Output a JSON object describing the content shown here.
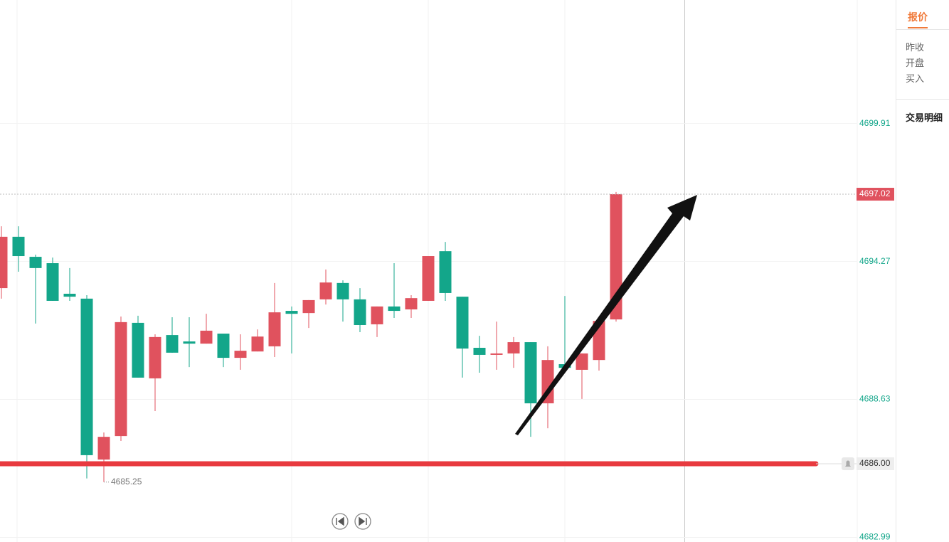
{
  "chart_data": {
    "type": "candlestick",
    "candles": [
      {
        "open": 4693.18,
        "high": 4695.71,
        "low": 4692.75,
        "close": 4695.28
      },
      {
        "open": 4695.28,
        "high": 4695.71,
        "low": 4693.85,
        "close": 4694.49
      },
      {
        "open": 4694.46,
        "high": 4694.55,
        "low": 4691.73,
        "close": 4694.0
      },
      {
        "open": 4694.2,
        "high": 4694.43,
        "low": 4692.66,
        "close": 4692.66
      },
      {
        "open": 4692.95,
        "high": 4694.0,
        "low": 4692.66,
        "close": 4692.83
      },
      {
        "open": 4692.75,
        "high": 4692.89,
        "low": 4685.4,
        "close": 4686.35
      },
      {
        "open": 4686.17,
        "high": 4687.28,
        "low": 4685.25,
        "close": 4687.1
      },
      {
        "open": 4687.13,
        "high": 4692.02,
        "low": 4686.93,
        "close": 4691.79
      },
      {
        "open": 4691.76,
        "high": 4692.05,
        "low": 4689.52,
        "close": 4689.52
      },
      {
        "open": 4689.49,
        "high": 4691.29,
        "low": 4688.15,
        "close": 4691.18
      },
      {
        "open": 4691.26,
        "high": 4691.99,
        "low": 4690.54,
        "close": 4690.54
      },
      {
        "open": 4691.0,
        "high": 4691.99,
        "low": 4689.95,
        "close": 4690.91
      },
      {
        "open": 4690.91,
        "high": 4692.13,
        "low": 4690.91,
        "close": 4691.44
      },
      {
        "open": 4691.32,
        "high": 4691.32,
        "low": 4689.95,
        "close": 4690.33
      },
      {
        "open": 4690.33,
        "high": 4691.29,
        "low": 4689.84,
        "close": 4690.62
      },
      {
        "open": 4690.59,
        "high": 4691.49,
        "low": 4690.59,
        "close": 4691.2
      },
      {
        "open": 4690.8,
        "high": 4693.39,
        "low": 4690.36,
        "close": 4692.19
      },
      {
        "open": 4692.25,
        "high": 4692.43,
        "low": 4690.51,
        "close": 4692.13
      },
      {
        "open": 4692.16,
        "high": 4692.69,
        "low": 4691.55,
        "close": 4692.69
      },
      {
        "open": 4692.72,
        "high": 4693.94,
        "low": 4692.51,
        "close": 4693.41
      },
      {
        "open": 4693.39,
        "high": 4693.5,
        "low": 4691.81,
        "close": 4692.72
      },
      {
        "open": 4692.72,
        "high": 4693.18,
        "low": 4691.38,
        "close": 4691.67
      },
      {
        "open": 4691.7,
        "high": 4692.43,
        "low": 4691.18,
        "close": 4692.43
      },
      {
        "open": 4692.43,
        "high": 4694.2,
        "low": 4691.96,
        "close": 4692.25
      },
      {
        "open": 4692.31,
        "high": 4692.89,
        "low": 4691.96,
        "close": 4692.77
      },
      {
        "open": 4692.66,
        "high": 4694.49,
        "low": 4692.66,
        "close": 4694.49
      },
      {
        "open": 4694.69,
        "high": 4695.07,
        "low": 4692.66,
        "close": 4692.98
      },
      {
        "open": 4692.83,
        "high": 4692.83,
        "low": 4689.52,
        "close": 4690.71
      },
      {
        "open": 4690.74,
        "high": 4691.23,
        "low": 4689.72,
        "close": 4690.45
      },
      {
        "open": 4690.45,
        "high": 4691.81,
        "low": 4689.84,
        "close": 4690.51
      },
      {
        "open": 4690.51,
        "high": 4691.18,
        "low": 4689.92,
        "close": 4690.97
      },
      {
        "open": 4690.97,
        "high": 4690.97,
        "low": 4687.1,
        "close": 4688.47
      },
      {
        "open": 4688.47,
        "high": 4690.8,
        "low": 4687.45,
        "close": 4690.24
      },
      {
        "open": 4690.07,
        "high": 4692.86,
        "low": 4689.92,
        "close": 4689.92
      },
      {
        "open": 4689.84,
        "high": 4690.51,
        "low": 4688.65,
        "close": 4690.51
      },
      {
        "open": 4690.24,
        "high": 4691.84,
        "low": 4689.81,
        "close": 4691.84
      },
      {
        "open": 4691.9,
        "high": 4697.11,
        "low": 4691.81,
        "close": 4697.02
      }
    ],
    "up_color": "#e0525e",
    "down_color": "#13a68a",
    "ylim": [
      4682.8,
      4704.96
    ],
    "yticks": [
      4682.99,
      4688.63,
      4694.27,
      4699.91
    ],
    "grid": true,
    "last_price": 4697.02,
    "alert_line": {
      "value": 4686,
      "label": "4686.00"
    },
    "low_annotation": 4685.25
  },
  "side_panel": {
    "tab": "报价",
    "fields": [
      "昨收",
      "开盘",
      "买入"
    ],
    "section": "交易明细"
  }
}
